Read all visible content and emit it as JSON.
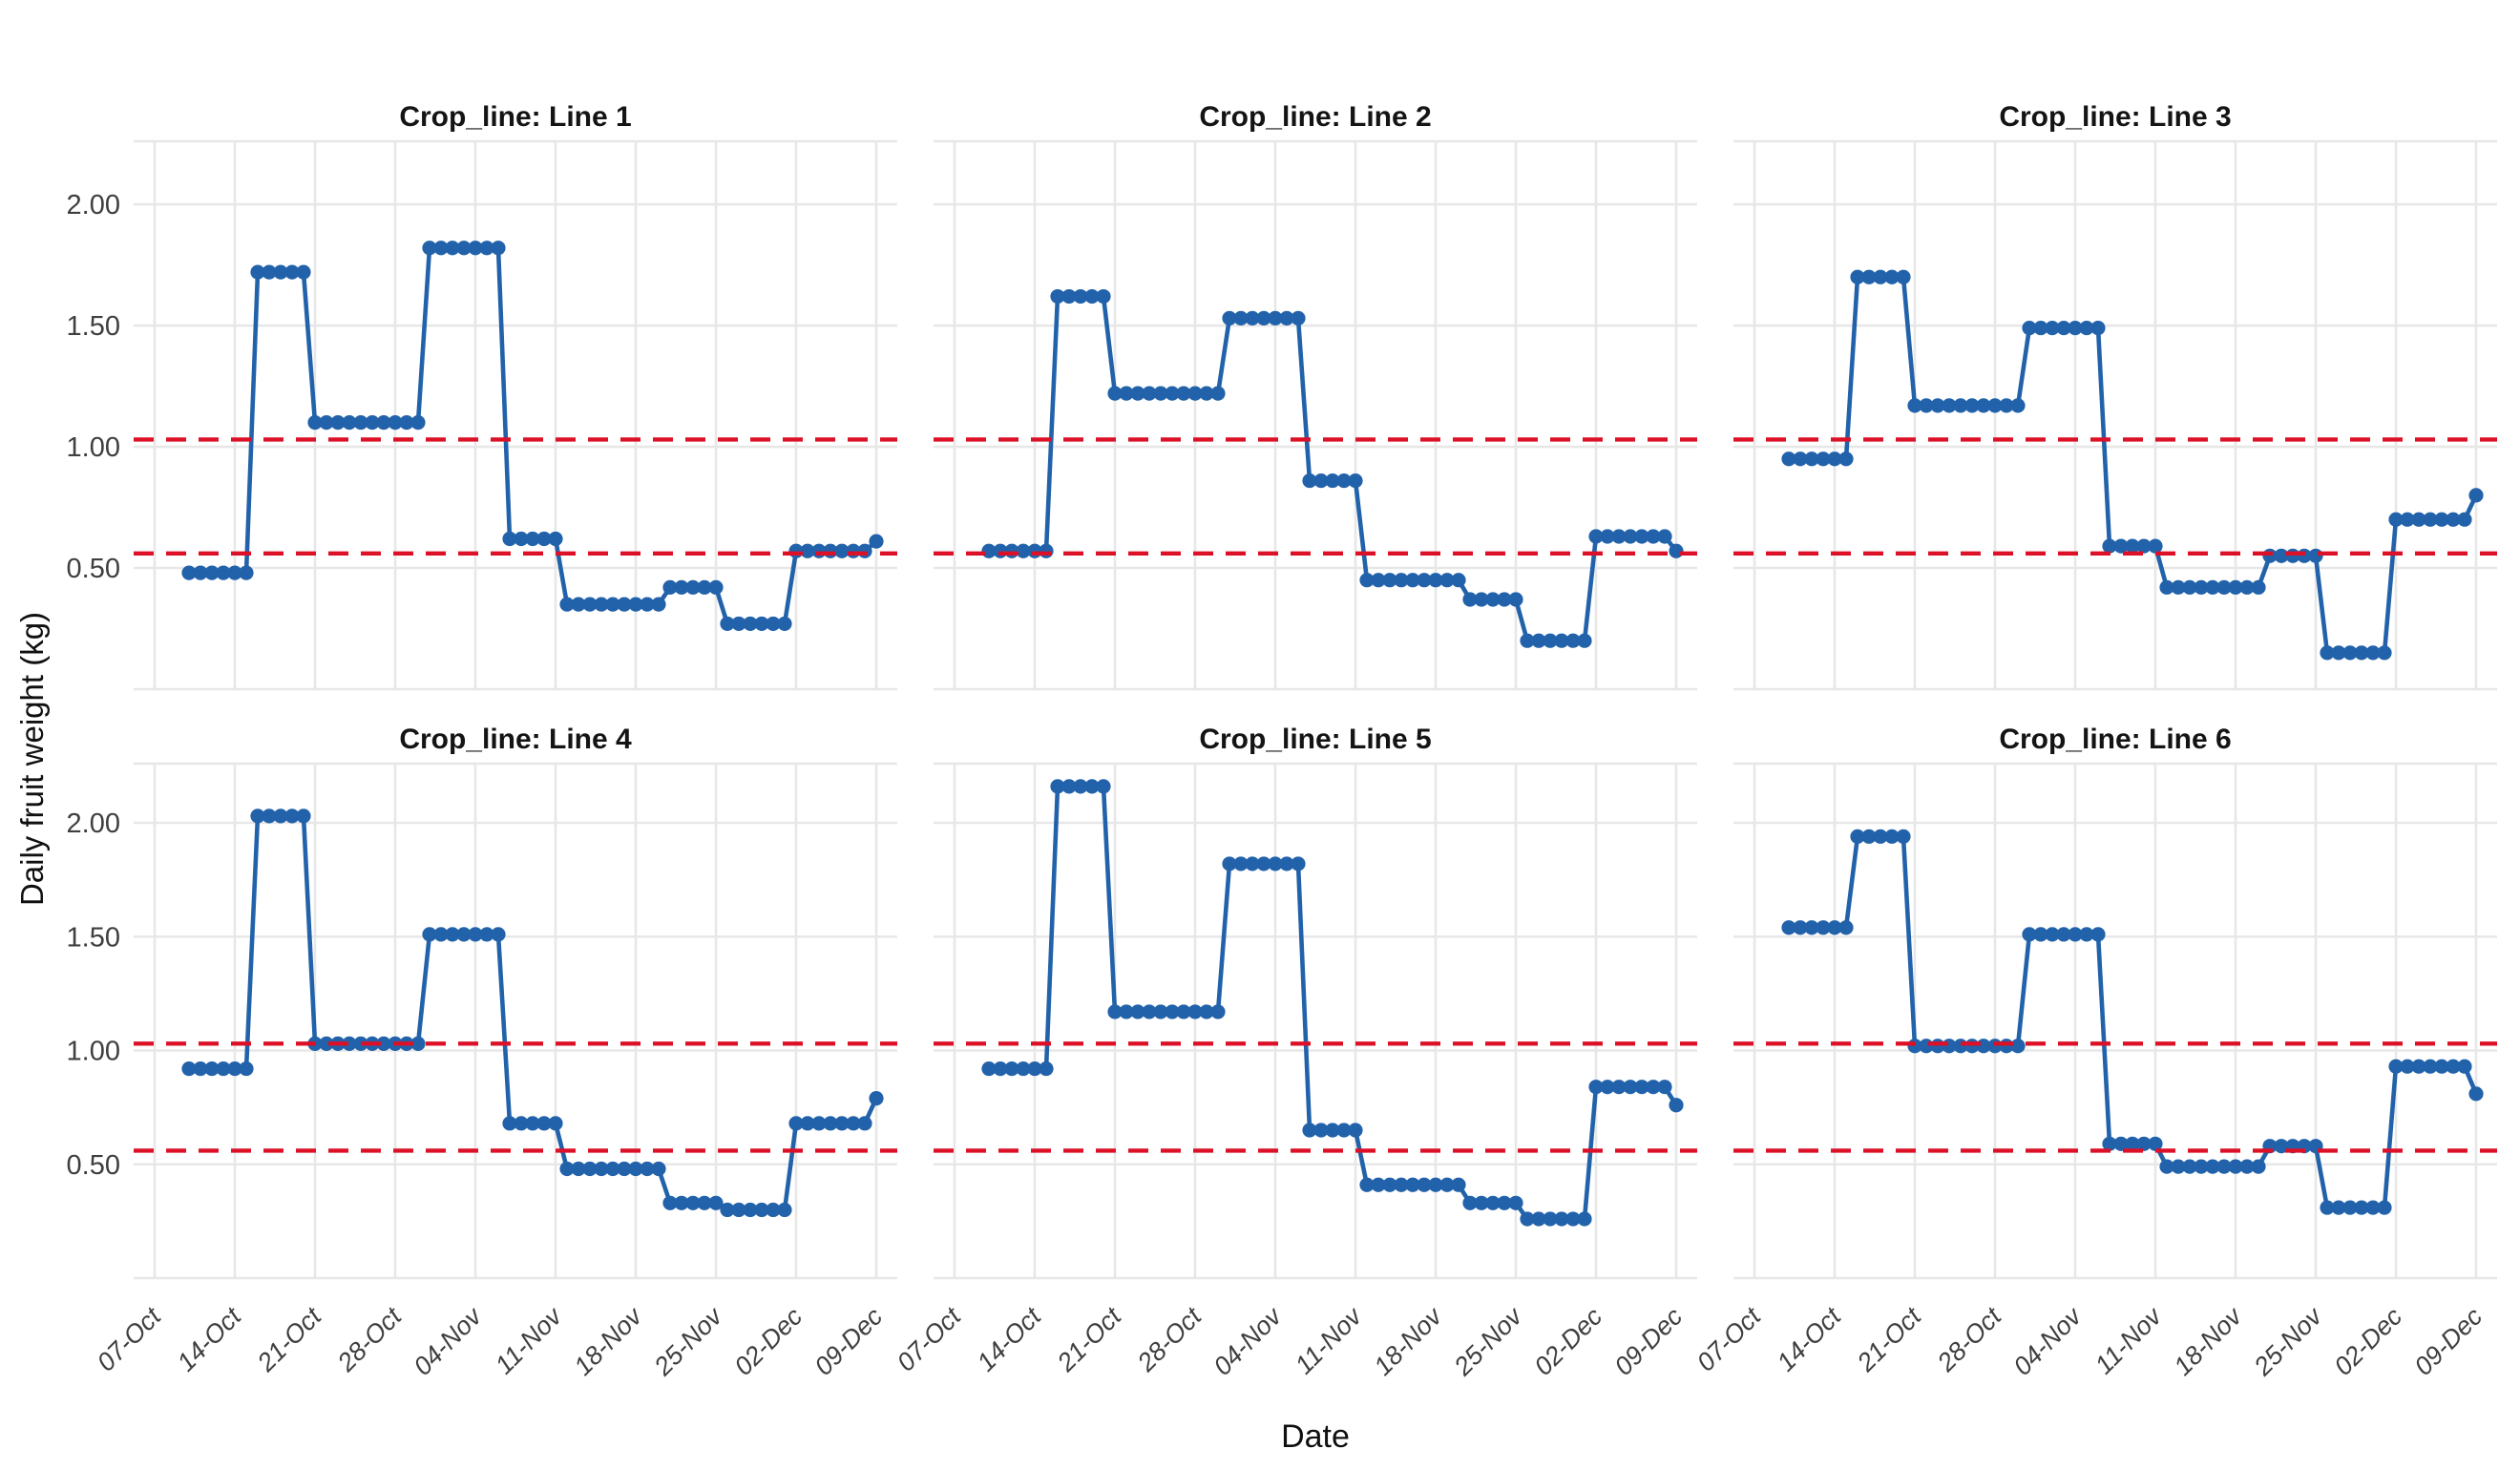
{
  "chart_data": {
    "type": "line",
    "title": "",
    "facet_variable": "Crop_line",
    "xlabel": "Date",
    "ylabel": "Daily fruit weight (kg)",
    "legend": "none",
    "grid": "major-only",
    "x_tick_labels": [
      "07-Oct",
      "14-Oct",
      "21-Oct",
      "28-Oct",
      "04-Nov",
      "11-Nov",
      "18-Nov",
      "25-Nov",
      "02-Dec",
      "09-Dec"
    ],
    "x_tick_days": [
      0,
      7,
      14,
      21,
      28,
      35,
      42,
      49,
      56,
      63
    ],
    "y_ticks": [
      0.5,
      1.0,
      1.5,
      2.0
    ],
    "y_tick_labels": [
      "0.50",
      "1.00",
      "1.50",
      "2.00"
    ],
    "ylim": [
      0,
      2.26
    ],
    "reference_lines": {
      "upper": 1.03,
      "lower": 0.56,
      "style": "dashed"
    },
    "colors": {
      "series": "#2262aa",
      "reference": "#dc1127",
      "grid": "#e7e7e7",
      "tick_text": "#3f3f3f",
      "title_text": "#141414"
    },
    "segment_day_ranges": [
      [
        3,
        8
      ],
      [
        9,
        13
      ],
      [
        14,
        23
      ],
      [
        24,
        30
      ],
      [
        31,
        35
      ],
      [
        36,
        44
      ],
      [
        45,
        49
      ],
      [
        50,
        55
      ],
      [
        56,
        62
      ],
      [
        63,
        63
      ]
    ],
    "facets": [
      {
        "title": "Crop_line: Line 1",
        "step_values": [
          0.48,
          1.72,
          1.1,
          1.82,
          0.62,
          0.35,
          0.42,
          0.27,
          0.57,
          0.61
        ]
      },
      {
        "title": "Crop_line: Line 2",
        "step_values": [
          0.57,
          1.62,
          1.22,
          1.53,
          0.86,
          0.45,
          0.37,
          0.2,
          0.63,
          0.57
        ]
      },
      {
        "title": "Crop_line: Line 3",
        "step_values": [
          0.95,
          1.7,
          1.17,
          1.49,
          0.59,
          0.42,
          0.55,
          0.15,
          0.7,
          0.8
        ]
      },
      {
        "title": "Crop_line: Line 4",
        "step_values": [
          0.92,
          2.03,
          1.03,
          1.51,
          0.68,
          0.48,
          0.33,
          0.3,
          0.68,
          0.79
        ]
      },
      {
        "title": "Crop_line: Line 5",
        "step_values": [
          0.92,
          2.16,
          1.17,
          1.82,
          0.65,
          0.41,
          0.33,
          0.26,
          0.84,
          0.76
        ]
      },
      {
        "title": "Crop_line: Line 6",
        "step_values": [
          1.54,
          1.94,
          1.02,
          1.51,
          0.59,
          0.49,
          0.58,
          0.31,
          0.93,
          0.81
        ]
      }
    ]
  }
}
